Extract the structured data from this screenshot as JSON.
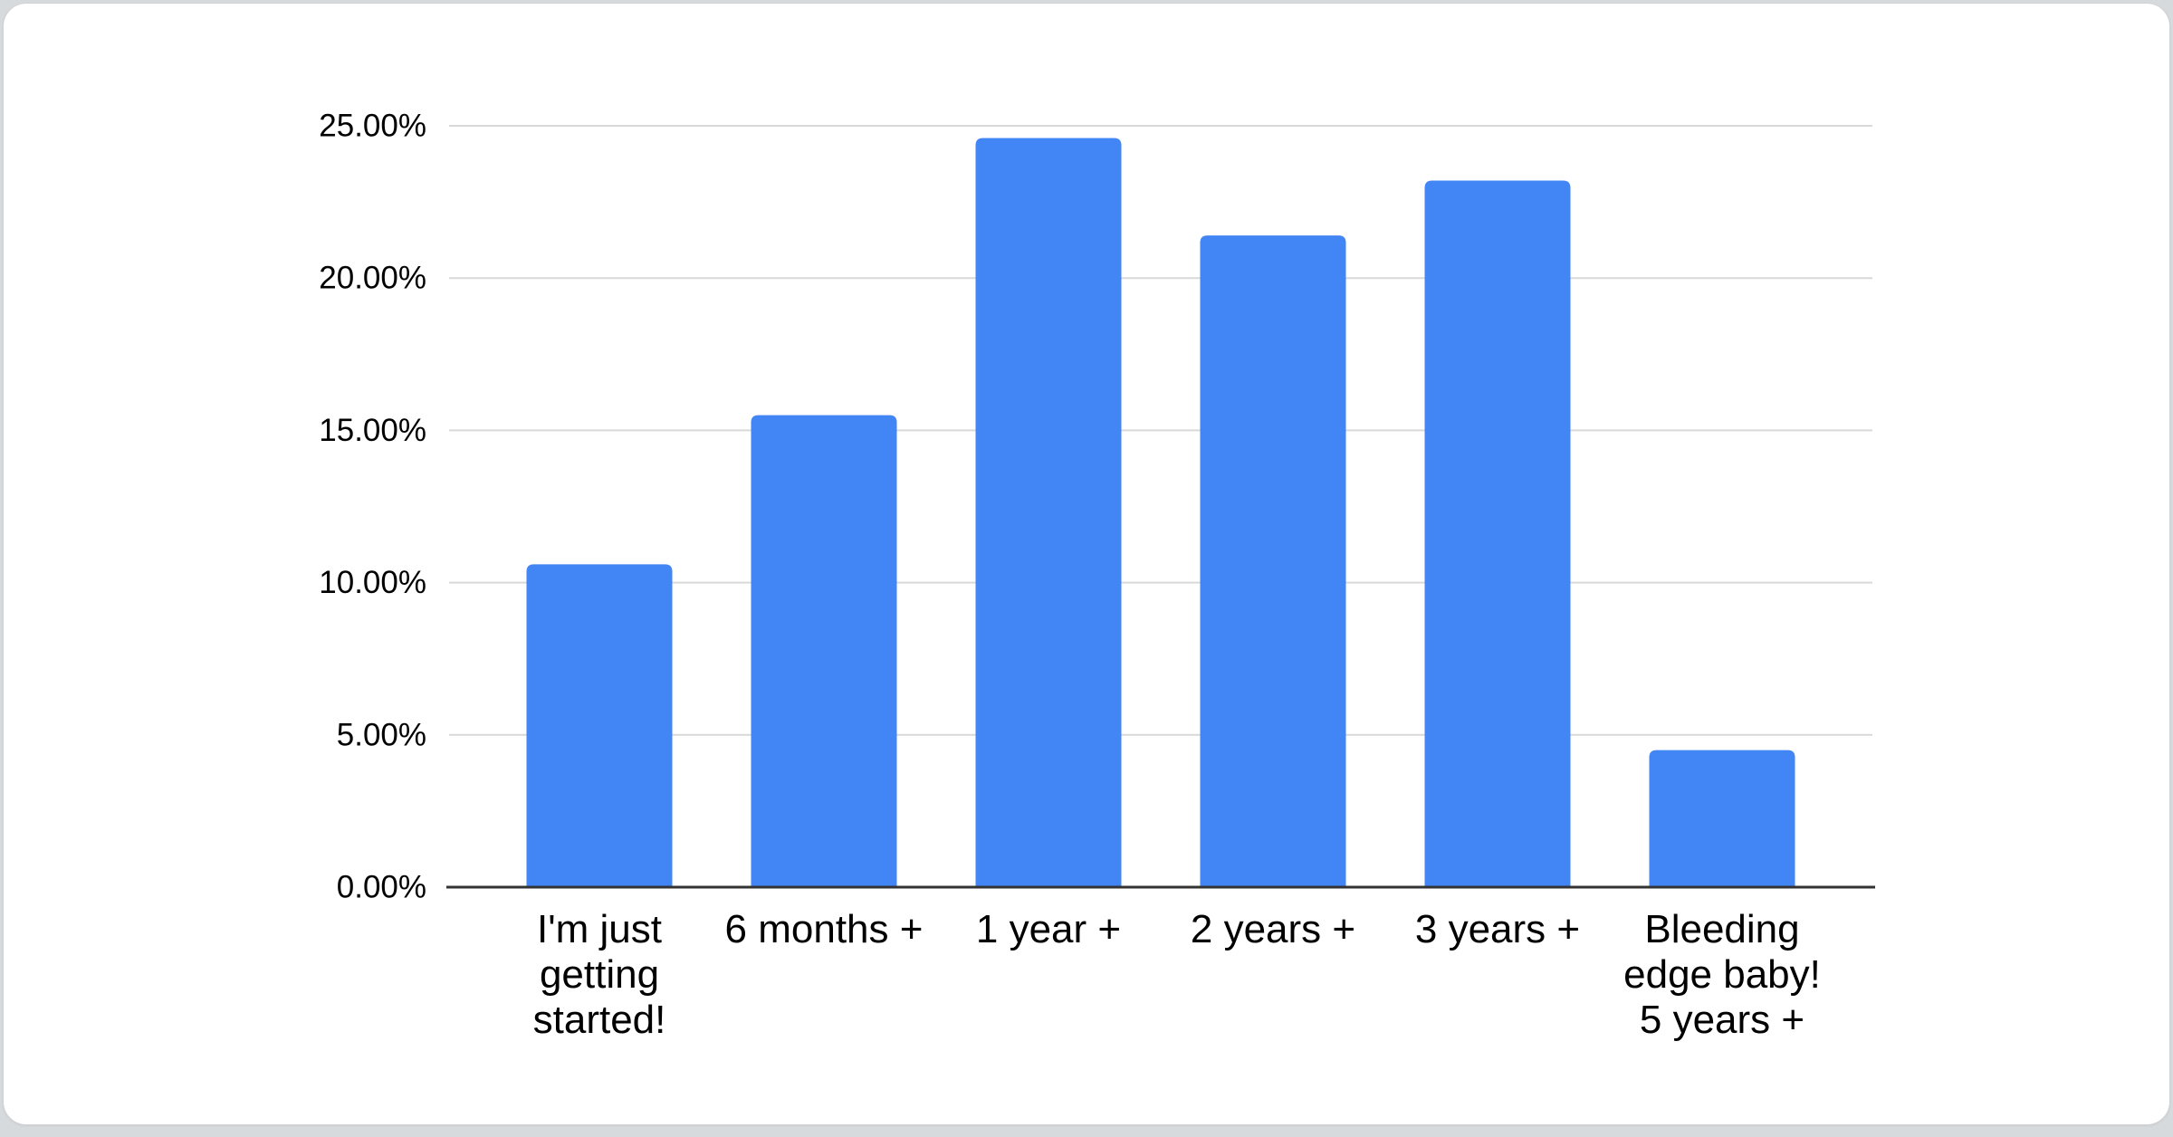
{
  "page": {
    "background_color": "#d7dadd",
    "card_background_color": "#ffffff",
    "card_border_color": "#cfd3d6"
  },
  "chart_data": {
    "type": "bar",
    "title": "",
    "subtitle": "",
    "legend": "none",
    "grid": true,
    "categories": [
      "I'm just getting started!",
      "6 months +",
      "1 year +",
      "2 years +",
      "3 years +",
      "Bleeding edge baby! 5 years +"
    ],
    "category_label_lines": [
      [
        "I'm just",
        "getting",
        "started!"
      ],
      [
        "6 months +"
      ],
      [
        "1 year +"
      ],
      [
        "2 years +"
      ],
      [
        "3 years +"
      ],
      [
        "Bleeding",
        "edge baby!",
        "5 years +"
      ]
    ],
    "values": [
      10.6,
      15.5,
      24.6,
      21.4,
      23.2,
      4.5
    ],
    "value_unit": "%",
    "ylim": [
      0,
      25
    ],
    "yticks": [
      0,
      5,
      10,
      15,
      20,
      25
    ],
    "ytick_labels": [
      "0.00%",
      "5.00%",
      "10.00%",
      "15.00%",
      "20.00%",
      "25.00%"
    ],
    "xlabel": "",
    "ylabel": "",
    "bar_color": "#4285f4",
    "gridline_color": "#d9d9d9",
    "axis_color": "#333333",
    "text_color": "#000000"
  }
}
